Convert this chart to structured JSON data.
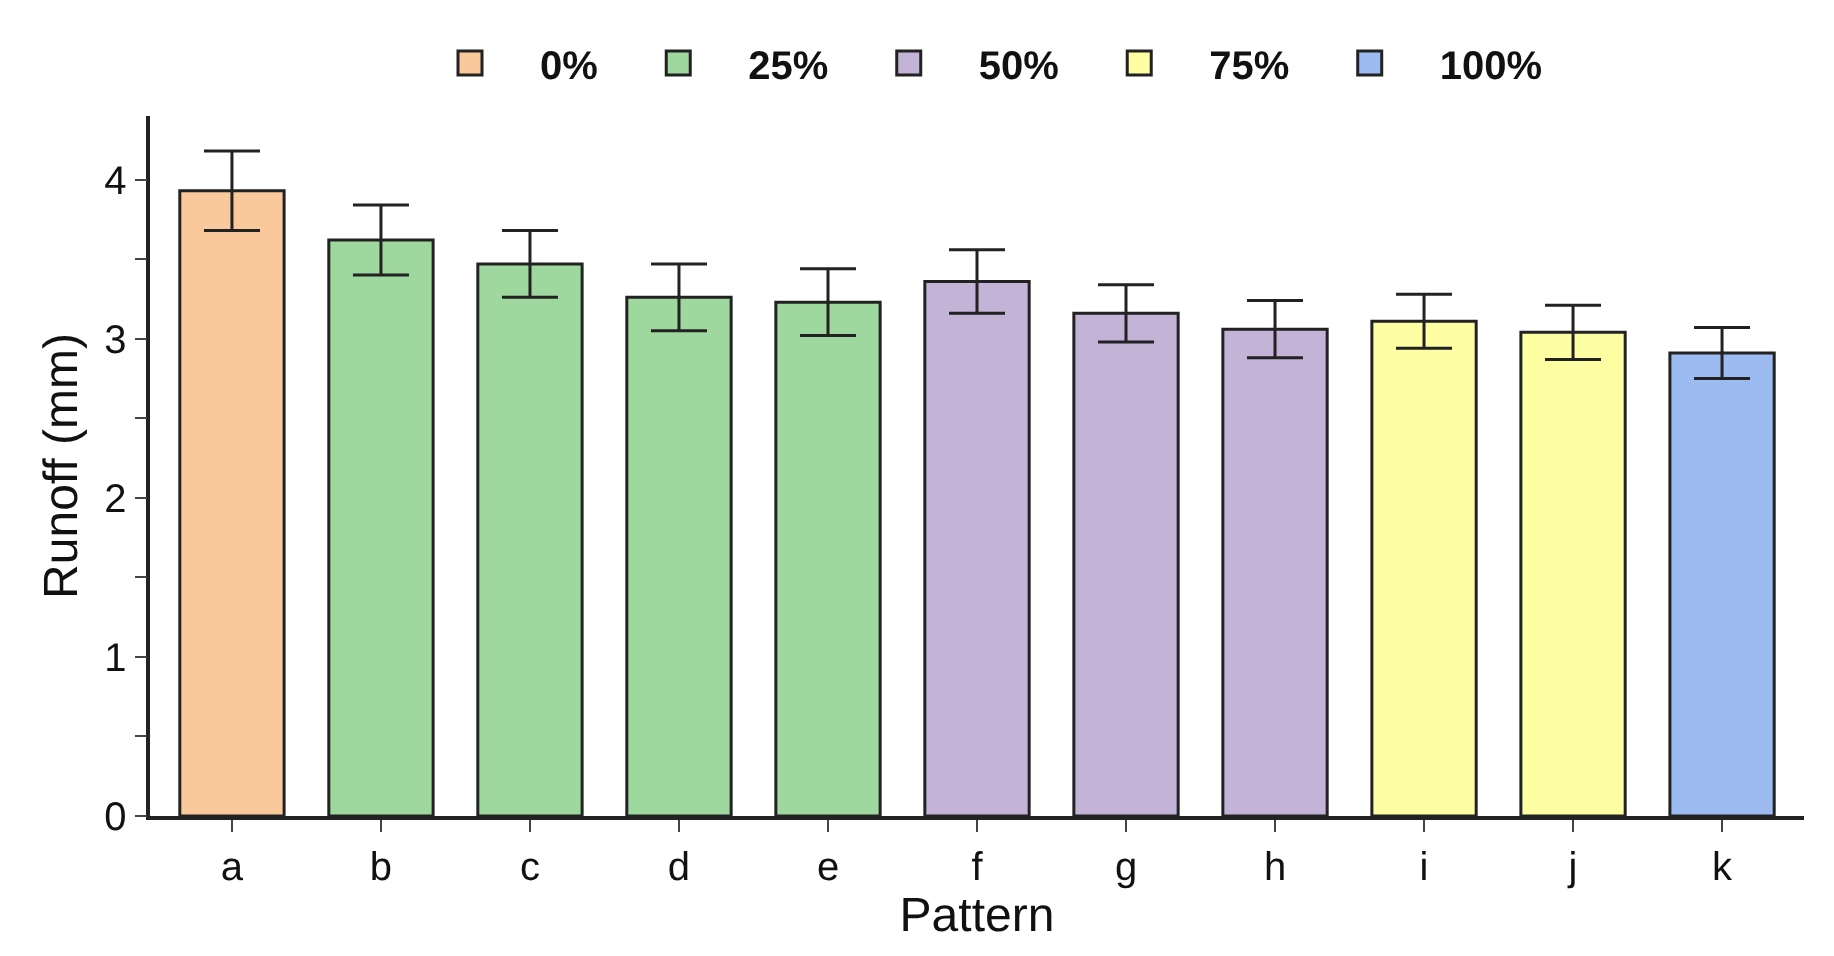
{
  "chart_data": {
    "type": "bar",
    "xlabel": "Pattern",
    "ylabel": "Runoff (mm)",
    "categories": [
      "a",
      "b",
      "c",
      "d",
      "e",
      "f",
      "g",
      "h",
      "i",
      "j",
      "k"
    ],
    "series": [
      {
        "name": "0%",
        "color": "#f9c89b",
        "values": [
          3.93,
          null,
          null,
          null,
          null,
          null,
          null,
          null,
          null,
          null,
          null
        ],
        "errors": [
          0.25,
          null,
          null,
          null,
          null,
          null,
          null,
          null,
          null,
          null,
          null
        ]
      },
      {
        "name": "25%",
        "color": "#9fd89e",
        "values": [
          null,
          3.62,
          3.47,
          3.26,
          3.23,
          null,
          null,
          null,
          null,
          null,
          null
        ],
        "errors": [
          null,
          0.22,
          0.21,
          0.21,
          0.21,
          null,
          null,
          null,
          null,
          null,
          null
        ]
      },
      {
        "name": "50%",
        "color": "#c3b3d7",
        "values": [
          null,
          null,
          null,
          null,
          null,
          3.36,
          3.16,
          3.06,
          null,
          null,
          null
        ],
        "errors": [
          null,
          null,
          null,
          null,
          null,
          0.2,
          0.18,
          0.18,
          null,
          null,
          null
        ]
      },
      {
        "name": "75%",
        "color": "#feffa3",
        "values": [
          null,
          null,
          null,
          null,
          null,
          null,
          null,
          null,
          3.11,
          3.04,
          null
        ],
        "errors": [
          null,
          null,
          null,
          null,
          null,
          null,
          null,
          null,
          0.17,
          0.17,
          null
        ]
      },
      {
        "name": "100%",
        "color": "#9cbbf0",
        "values": [
          null,
          null,
          null,
          null,
          null,
          null,
          null,
          null,
          null,
          null,
          2.91
        ],
        "errors": [
          null,
          null,
          null,
          null,
          null,
          null,
          null,
          null,
          null,
          null,
          0.16
        ]
      }
    ],
    "ylim": [
      0,
      4.4
    ],
    "yticks": [
      0,
      {
        "value": 0.5,
        "label": null
      },
      1,
      {
        "value": 1.5,
        "label": null
      },
      2,
      {
        "value": 2.5,
        "label": null
      },
      3,
      {
        "value": 3.5,
        "label": null
      },
      4
    ],
    "legend": "top"
  }
}
